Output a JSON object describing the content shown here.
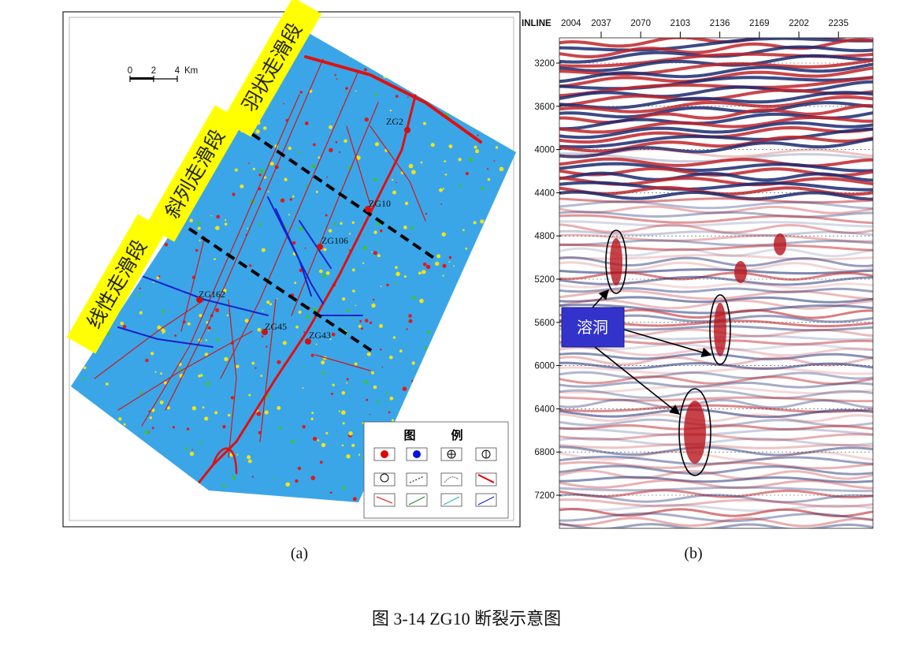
{
  "panel_a": {
    "label": "(a)",
    "zones": [
      "羽状走滑段",
      "斜列走滑段",
      "线性走滑段"
    ],
    "wells": [
      "ZG2",
      "ZG10",
      "ZG106",
      "ZG162",
      "ZG45",
      "ZG43"
    ],
    "scale": {
      "ticks": [
        "0",
        "2",
        "4"
      ],
      "unit": "Km"
    },
    "legend": {
      "title": [
        "图",
        "例"
      ]
    }
  },
  "panel_b": {
    "label": "(b)",
    "x_axis_title": "INLINE",
    "x_ticks": [
      2004,
      2037,
      2070,
      2103,
      2136,
      2169,
      2202,
      2235
    ],
    "y_ticks": [
      3200,
      3600,
      4000,
      4400,
      4800,
      5200,
      5600,
      6000,
      6400,
      6800,
      7200
    ],
    "annotation": "溶洞"
  },
  "caption": "图 3-14 ZG10 断裂示意图"
}
